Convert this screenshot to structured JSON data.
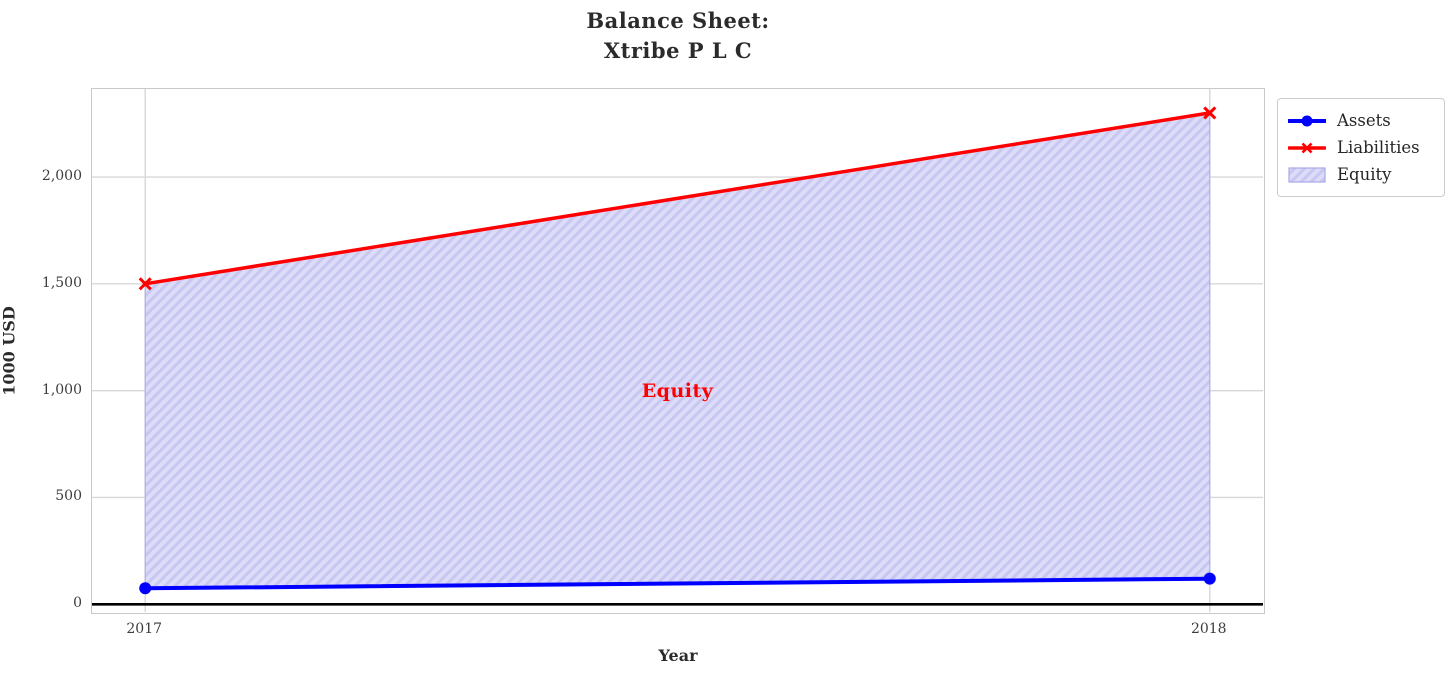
{
  "chart_data": {
    "type": "area",
    "title": "Balance Sheet:\nXtribe P L C",
    "xlabel": "Year",
    "ylabel": "1000 USD",
    "x": [
      2017,
      2018
    ],
    "series": [
      {
        "name": "Assets",
        "values": [
          75,
          120
        ],
        "color": "#0000ff",
        "marker": "circle",
        "line_width": 4
      },
      {
        "name": "Liabilities",
        "values": [
          1500,
          2300
        ],
        "color": "#ff0000",
        "marker": "x",
        "line_width": 3.5
      }
    ],
    "area": {
      "name": "Equity",
      "between": [
        "Assets",
        "Liabilities"
      ],
      "fill_color": "#dcdcf8",
      "hatch_color": "#c7c7f2",
      "edge_color": "#a8a8e8",
      "hatch_style": "diagonal"
    },
    "annotation": {
      "text": "Equity",
      "x": 2017.5,
      "y": 1000,
      "color": "#ff0000"
    },
    "xlim": [
      2016.95,
      2018.05
    ],
    "ylim": [
      -36,
      2412
    ],
    "xticks": [
      2017,
      2018
    ],
    "yticks": [
      0,
      500,
      1000,
      1500,
      2000
    ],
    "ytick_labels": [
      "0",
      "500",
      "1,000",
      "1,500",
      "2,000"
    ],
    "grid": true,
    "zero_line": true,
    "legend": {
      "position": "outside-upper-right",
      "entries": [
        "Assets",
        "Liabilities",
        "Equity"
      ]
    },
    "colors": {
      "grid": "#d8d8d8",
      "axis_border": "#c9c9c9",
      "text": "#2b2b2b",
      "tick_text": "#3d3d3d",
      "zero_line": "#000000"
    }
  }
}
